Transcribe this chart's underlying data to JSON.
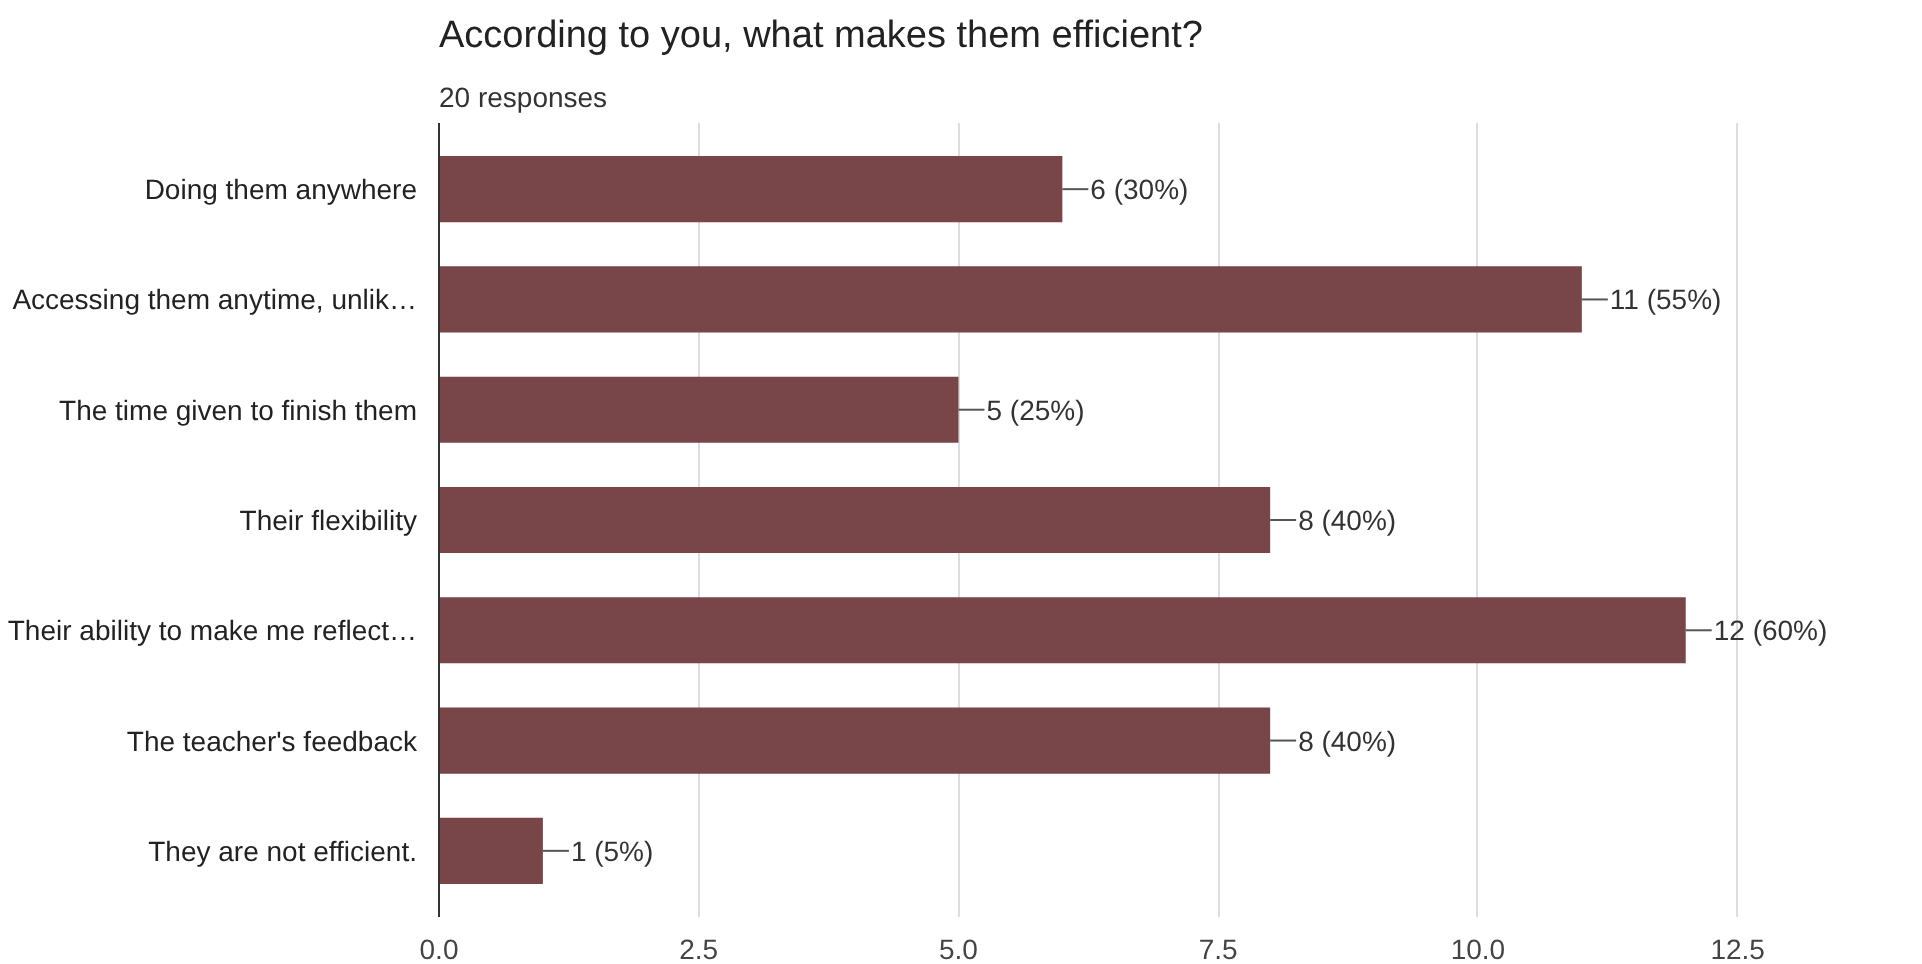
{
  "chart_data": {
    "type": "bar",
    "orientation": "horizontal",
    "title": "According to you, what makes them efficient?",
    "subtitle": "20 responses",
    "categories": [
      "Doing them anywhere",
      "Accessing them anytime, unlik…",
      "The time given to finish them",
      "Their flexibility",
      "Their ability to make me reflect…",
      "The teacher's feedback",
      "They are not efficient."
    ],
    "values": [
      6,
      11,
      5,
      8,
      12,
      8,
      1
    ],
    "value_labels": [
      "6 (30%)",
      "11 (55%)",
      "5 (25%)",
      "8 (40%)",
      "12 (60%)",
      "8 (40%)",
      "1 (5%)"
    ],
    "color": "#784549",
    "xlim": [
      0,
      12.5
    ],
    "xticks": [
      {
        "value": 0,
        "label": "0.0"
      },
      {
        "value": 2.5,
        "label": "2.5"
      },
      {
        "value": 5,
        "label": "5.0"
      },
      {
        "value": 7.5,
        "label": "7.5"
      },
      {
        "value": 10,
        "label": "10.0"
      },
      {
        "value": 12.5,
        "label": "12.5"
      }
    ],
    "grid": "x"
  }
}
